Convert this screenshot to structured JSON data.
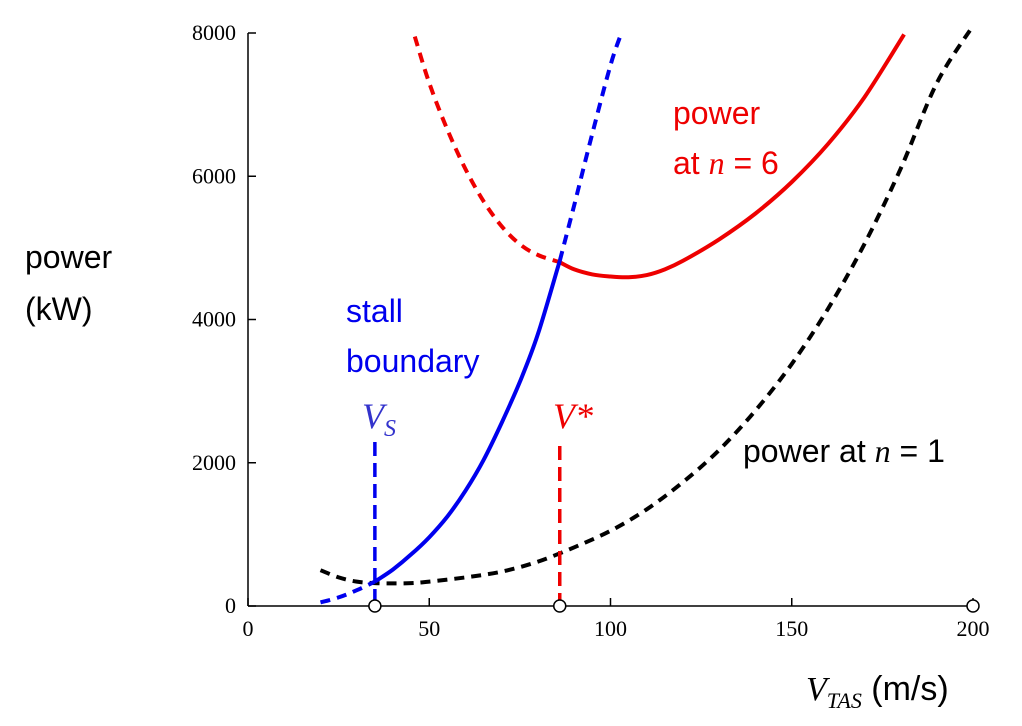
{
  "chart_data": {
    "type": "line",
    "title": "",
    "ylabel": {
      "line1": "power",
      "line2": "(kW)"
    },
    "xlabel": {
      "var": "V",
      "sub": "TAS",
      "unit": " (m/s)"
    },
    "xlim": [
      0,
      200
    ],
    "ylim": [
      0,
      8000
    ],
    "x_ticks": [
      0,
      50,
      100,
      150,
      200
    ],
    "y_ticks": [
      0,
      2000,
      4000,
      6000,
      8000
    ],
    "grid": false,
    "series": [
      {
        "name": "power at n = 1",
        "color": "#000000",
        "style": "dashed",
        "points": [
          [
            20,
            500
          ],
          [
            25,
            400
          ],
          [
            30,
            340
          ],
          [
            35,
            320
          ],
          [
            40,
            315
          ],
          [
            45,
            320
          ],
          [
            50,
            340
          ],
          [
            60,
            400
          ],
          [
            70,
            480
          ],
          [
            80,
            620
          ],
          [
            90,
            820
          ],
          [
            100,
            1050
          ],
          [
            110,
            1350
          ],
          [
            120,
            1730
          ],
          [
            130,
            2180
          ],
          [
            140,
            2730
          ],
          [
            150,
            3380
          ],
          [
            160,
            4150
          ],
          [
            170,
            5050
          ],
          [
            180,
            6100
          ],
          [
            190,
            7300
          ],
          [
            200,
            8100
          ]
        ]
      },
      {
        "name": "power at n = 6",
        "color": "#ee0000",
        "style": "dashed-then-solid",
        "solid_from_x": 86,
        "points": [
          [
            46,
            7950
          ],
          [
            50,
            7300
          ],
          [
            55,
            6650
          ],
          [
            60,
            6100
          ],
          [
            65,
            5650
          ],
          [
            70,
            5300
          ],
          [
            75,
            5050
          ],
          [
            80,
            4900
          ],
          [
            86,
            4800
          ],
          [
            90,
            4700
          ],
          [
            95,
            4630
          ],
          [
            100,
            4600
          ],
          [
            105,
            4590
          ],
          [
            110,
            4620
          ],
          [
            115,
            4700
          ],
          [
            120,
            4820
          ],
          [
            130,
            5120
          ],
          [
            140,
            5480
          ],
          [
            150,
            5920
          ],
          [
            160,
            6450
          ],
          [
            170,
            7100
          ],
          [
            181,
            7980
          ]
        ]
      },
      {
        "name": "stall boundary",
        "color": "#0000ee",
        "style": "dashed-solid-dashed",
        "solid_from_x": 35,
        "solid_to_x": 86,
        "points": [
          [
            20,
            50
          ],
          [
            25,
            120
          ],
          [
            30,
            220
          ],
          [
            35,
            340
          ],
          [
            40,
            510
          ],
          [
            45,
            720
          ],
          [
            50,
            960
          ],
          [
            55,
            1250
          ],
          [
            60,
            1610
          ],
          [
            65,
            2040
          ],
          [
            70,
            2560
          ],
          [
            75,
            3130
          ],
          [
            80,
            3800
          ],
          [
            86,
            4820
          ],
          [
            90,
            5600
          ],
          [
            95,
            6600
          ],
          [
            100,
            7550
          ],
          [
            103,
            8000
          ]
        ]
      }
    ],
    "annotations": {
      "stall": {
        "line1": "stall",
        "line2": "boundary",
        "color": "#0000ee"
      },
      "n6": {
        "line1": "power",
        "line2_prefix": "at ",
        "var": "n",
        "line2_suffix": " = 6",
        "color": "#ee0000"
      },
      "n1": {
        "prefix": "power at ",
        "var": "n",
        "suffix": " = 1",
        "color": "#000000"
      },
      "vs": {
        "var": "V",
        "sub": "S",
        "x": 35,
        "color": "#3333cc"
      },
      "vstar": {
        "text": "V*",
        "x": 86,
        "color": "#ee0000"
      }
    },
    "markers_x": [
      35,
      86,
      200
    ]
  }
}
